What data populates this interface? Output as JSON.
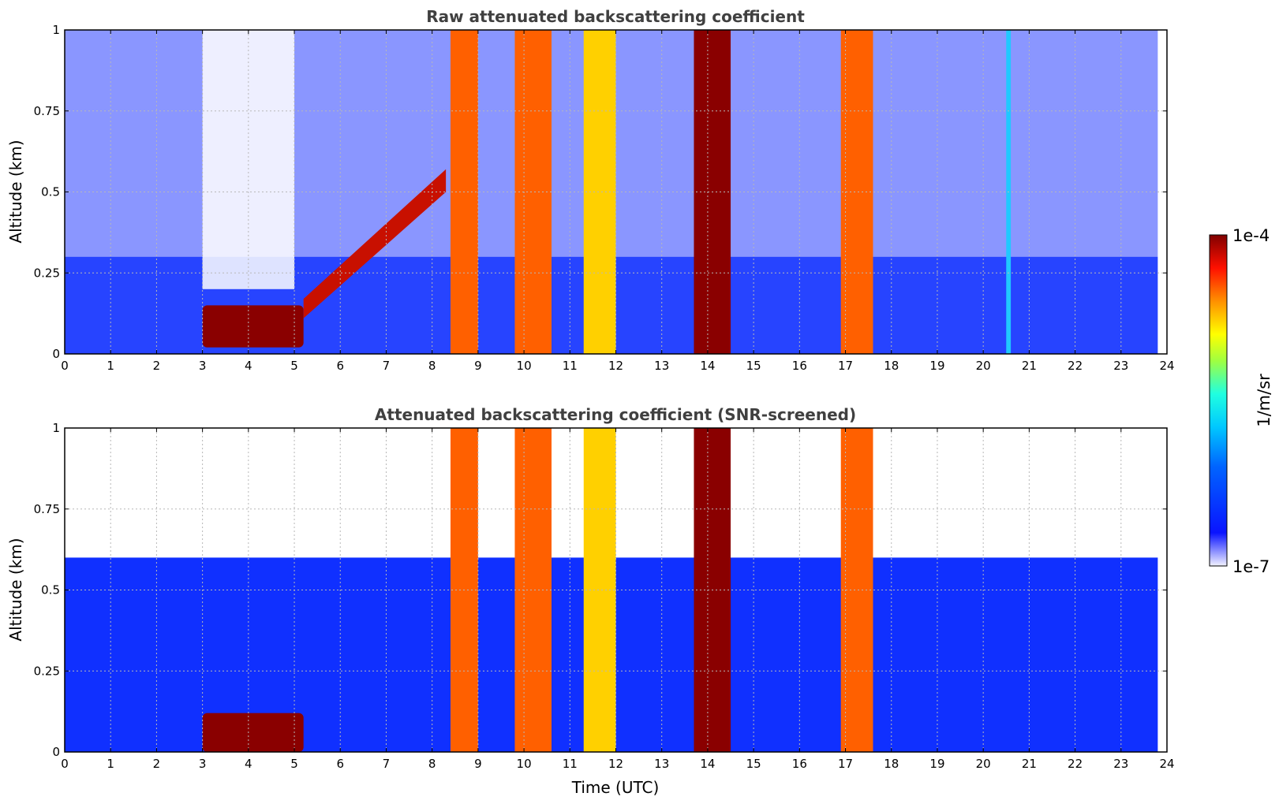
{
  "chart_data": [
    {
      "type": "heatmap",
      "title": "Raw attenuated backscattering coefficient",
      "xlabel": "",
      "ylabel": "Altitude (km)",
      "xlim": [
        0,
        24
      ],
      "ylim": [
        0,
        1
      ],
      "xticks": [
        "0",
        "1",
        "2",
        "3",
        "4",
        "5",
        "6",
        "7",
        "8",
        "9",
        "10",
        "11",
        "12",
        "13",
        "14",
        "15",
        "16",
        "17",
        "18",
        "19",
        "20",
        "21",
        "22",
        "23",
        "24"
      ],
      "yticks": [
        "0",
        "0.25",
        "0.5",
        "0.75",
        "1"
      ],
      "grid": true,
      "features": [
        {
          "kind": "noise_top",
          "time": [
            0,
            23.8
          ],
          "altitude": [
            0.3,
            1.0
          ]
        },
        {
          "kind": "clear_gap",
          "time": [
            3.0,
            5.0
          ],
          "altitude": [
            0.2,
            1.0
          ]
        },
        {
          "kind": "cloud_layer",
          "time": [
            3.0,
            5.2
          ],
          "altitude": [
            0.02,
            0.15
          ],
          "level": "max"
        },
        {
          "kind": "rising_layer",
          "time": [
            5.2,
            8.3
          ],
          "altitude": [
            0.15,
            0.55
          ],
          "level": "high"
        },
        {
          "kind": "precipitation",
          "time": [
            8.4,
            9.0
          ],
          "altitude": [
            0,
            1
          ],
          "level": "high"
        },
        {
          "kind": "precipitation",
          "time": [
            9.8,
            10.6
          ],
          "altitude": [
            0,
            1
          ],
          "level": "high"
        },
        {
          "kind": "precipitation",
          "time": [
            11.3,
            12.0
          ],
          "altitude": [
            0,
            1
          ],
          "level": "medium"
        },
        {
          "kind": "precipitation",
          "time": [
            13.7,
            14.5
          ],
          "altitude": [
            0,
            1
          ],
          "level": "max"
        },
        {
          "kind": "precipitation",
          "time": [
            16.9,
            17.6
          ],
          "altitude": [
            0,
            1
          ],
          "level": "high"
        },
        {
          "kind": "thin_streak",
          "time": [
            20.5,
            20.6
          ],
          "altitude": [
            0,
            1
          ],
          "level": "low"
        }
      ]
    },
    {
      "type": "heatmap",
      "title": "Attenuated backscattering coefficient (SNR-screened)",
      "xlabel": "Time (UTC)",
      "ylabel": "Altitude (km)",
      "xlim": [
        0,
        24
      ],
      "ylim": [
        0,
        1
      ],
      "xticks": [
        "0",
        "1",
        "2",
        "3",
        "4",
        "5",
        "6",
        "7",
        "8",
        "9",
        "10",
        "11",
        "12",
        "13",
        "14",
        "15",
        "16",
        "17",
        "18",
        "19",
        "20",
        "21",
        "22",
        "23",
        "24"
      ],
      "yticks": [
        "0",
        "0.25",
        "0.5",
        "0.75",
        "1"
      ],
      "grid": true,
      "features": [
        {
          "kind": "boundary_layer",
          "time": [
            0,
            23.8
          ],
          "altitude": [
            0,
            0.6
          ]
        },
        {
          "kind": "cloud_layer",
          "time": [
            3.0,
            5.2
          ],
          "altitude": [
            0.0,
            0.12
          ],
          "level": "max"
        },
        {
          "kind": "precipitation",
          "time": [
            8.4,
            9.0
          ],
          "altitude": [
            0,
            1
          ],
          "level": "high"
        },
        {
          "kind": "precipitation",
          "time": [
            9.8,
            10.6
          ],
          "altitude": [
            0,
            1
          ],
          "level": "high"
        },
        {
          "kind": "precipitation",
          "time": [
            11.3,
            12.0
          ],
          "altitude": [
            0,
            1
          ],
          "level": "medium"
        },
        {
          "kind": "precipitation",
          "time": [
            13.7,
            14.5
          ],
          "altitude": [
            0,
            1
          ],
          "level": "max"
        },
        {
          "kind": "precipitation",
          "time": [
            16.9,
            17.6
          ],
          "altitude": [
            0,
            1
          ],
          "level": "high"
        }
      ]
    }
  ],
  "colorbar": {
    "label": "1/m/sr",
    "max_label": "1e-4",
    "min_label": "1e-7",
    "colormap": [
      "#f0f0ff",
      "#0000ff",
      "#00a0ff",
      "#00ffff",
      "#ffff00",
      "#ff8000",
      "#ff0000",
      "#800000"
    ]
  }
}
